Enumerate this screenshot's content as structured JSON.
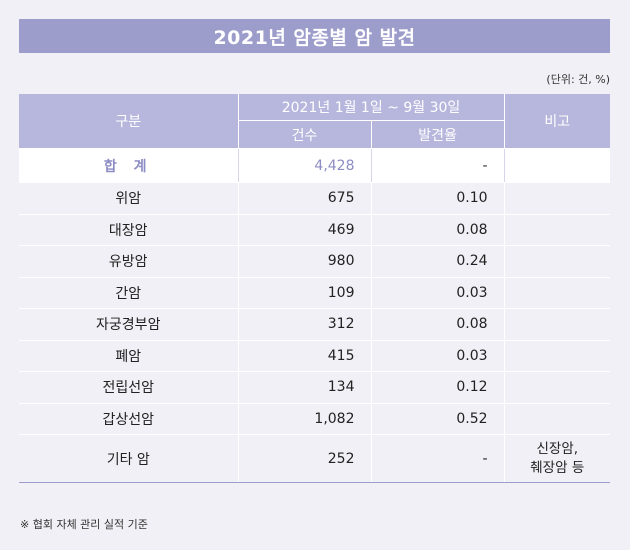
{
  "title": "2021년 암종별 암 발견",
  "unit_note": "(단위: 건, %)",
  "header": {
    "category": "구분",
    "period": "2021년 1월 1일 ~ 9월 30일",
    "count": "건수",
    "rate": "발견율",
    "remark": "비고"
  },
  "total": {
    "label": "합 계",
    "count": "4,428",
    "rate": "-",
    "remark": ""
  },
  "rows": [
    {
      "label": "위암",
      "count": "675",
      "rate": "0.10",
      "remark": ""
    },
    {
      "label": "대장암",
      "count": "469",
      "rate": "0.08",
      "remark": ""
    },
    {
      "label": "유방암",
      "count": "980",
      "rate": "0.24",
      "remark": ""
    },
    {
      "label": "간암",
      "count": "109",
      "rate": "0.03",
      "remark": ""
    },
    {
      "label": "자궁경부암",
      "count": "312",
      "rate": "0.08",
      "remark": ""
    },
    {
      "label": "폐암",
      "count": "415",
      "rate": "0.03",
      "remark": ""
    },
    {
      "label": "전립선암",
      "count": "134",
      "rate": "0.12",
      "remark": ""
    },
    {
      "label": "갑상선암",
      "count": "1,082",
      "rate": "0.52",
      "remark": ""
    },
    {
      "label": "기타 암",
      "count": "252",
      "rate": "-",
      "remark_line1": "신장암,",
      "remark_line2": "췌장암 등"
    }
  ],
  "footnote": "※ 협회 자체 관리 실적 기준"
}
